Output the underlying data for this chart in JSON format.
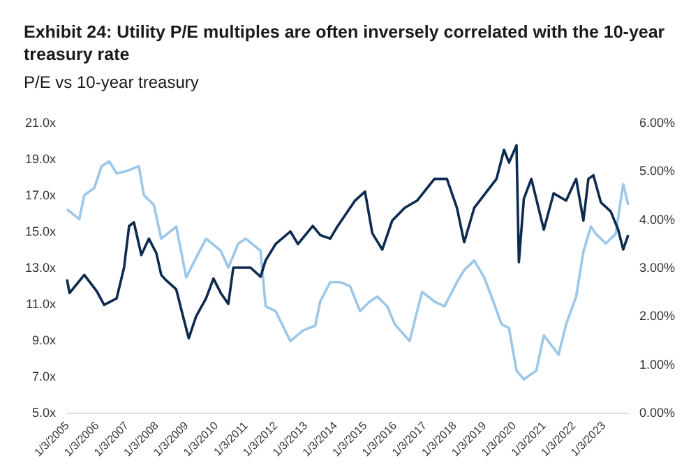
{
  "chart_data": {
    "type": "line",
    "title": "Exhibit 24: Utility P/E multiples are often inversely correlated with the 10-year treasury rate",
    "subtitle": "P/E vs 10-year treasury",
    "xlim": [
      "2005-01",
      "2023-11"
    ],
    "xticks": [
      {
        "value": "2005-01-03",
        "label": "1/3/2005"
      },
      {
        "value": "2006-01-03",
        "label": "1/3/2006"
      },
      {
        "value": "2007-01-03",
        "label": "1/3/2007"
      },
      {
        "value": "2008-01-03",
        "label": "1/3/2008"
      },
      {
        "value": "2009-01-03",
        "label": "1/3/2009"
      },
      {
        "value": "2010-01-03",
        "label": "1/3/2010"
      },
      {
        "value": "2011-01-03",
        "label": "1/3/2011"
      },
      {
        "value": "2012-01-03",
        "label": "1/3/2012"
      },
      {
        "value": "2013-01-03",
        "label": "1/3/2013"
      },
      {
        "value": "2014-01-03",
        "label": "1/3/2014"
      },
      {
        "value": "2015-01-03",
        "label": "1/3/2015"
      },
      {
        "value": "2016-01-03",
        "label": "1/3/2016"
      },
      {
        "value": "2017-01-03",
        "label": "1/3/2017"
      },
      {
        "value": "2018-01-03",
        "label": "1/3/2018"
      },
      {
        "value": "2019-01-03",
        "label": "1/3/2019"
      },
      {
        "value": "2020-01-03",
        "label": "1/3/2020"
      },
      {
        "value": "2021-01-03",
        "label": "1/3/2021"
      },
      {
        "value": "2022-01-03",
        "label": "1/3/2022"
      },
      {
        "value": "2023-01-03",
        "label": "1/3/2023"
      }
    ],
    "ylim": [
      5,
      21
    ],
    "yticks": [
      {
        "value": 5,
        "label": "5.0x"
      },
      {
        "value": 7,
        "label": "7.0x"
      },
      {
        "value": 9,
        "label": "9.0x"
      },
      {
        "value": 11,
        "label": "11.0x"
      },
      {
        "value": 13,
        "label": "13.0x"
      },
      {
        "value": 15,
        "label": "15.0x"
      },
      {
        "value": 17,
        "label": "17.0x"
      },
      {
        "value": 19,
        "label": "19.0x"
      },
      {
        "value": 21,
        "label": "21.0x"
      }
    ],
    "y2lim": [
      0,
      6
    ],
    "y2ticks": [
      {
        "value": 0,
        "label": "0.00%"
      },
      {
        "value": 1,
        "label": "1.00%"
      },
      {
        "value": 2,
        "label": "2.00%"
      },
      {
        "value": 3,
        "label": "3.00%"
      },
      {
        "value": 4,
        "label": "4.00%"
      },
      {
        "value": 5,
        "label": "5.00%"
      },
      {
        "value": 6,
        "label": "6.00%"
      }
    ],
    "grid": false,
    "marker": "none",
    "line_style": "solid",
    "series": [
      {
        "color": "#9cc7e8",
        "axis": "y2",
        "x": [
          "2005-01",
          "2005-06",
          "2005-08",
          "2005-12",
          "2006-03",
          "2006-06",
          "2006-09",
          "2007-01",
          "2007-06",
          "2007-08",
          "2007-12",
          "2008-03",
          "2008-09",
          "2009-01",
          "2009-04",
          "2009-09",
          "2010-03",
          "2010-06",
          "2010-10",
          "2011-01",
          "2011-07",
          "2011-09",
          "2012-01",
          "2012-07",
          "2012-12",
          "2013-05",
          "2013-07",
          "2013-11",
          "2014-03",
          "2014-07",
          "2014-11",
          "2015-03",
          "2015-06",
          "2015-10",
          "2016-01",
          "2016-07",
          "2016-10",
          "2016-12",
          "2017-05",
          "2017-09",
          "2018-02",
          "2018-05",
          "2018-09",
          "2019-01",
          "2019-04",
          "2019-08",
          "2019-11",
          "2020-02",
          "2020-05",
          "2020-10",
          "2021-01",
          "2021-07",
          "2021-10",
          "2022-02",
          "2022-05",
          "2022-08",
          "2022-10",
          "2023-02",
          "2023-06",
          "2023-09",
          "2023-11"
        ],
        "values": [
          4.21,
          4.0,
          4.5,
          4.65,
          5.1,
          5.2,
          4.95,
          5.0,
          5.1,
          4.5,
          4.3,
          3.6,
          3.85,
          2.8,
          3.1,
          3.6,
          3.35,
          3.0,
          3.5,
          3.6,
          3.35,
          2.2,
          2.1,
          1.48,
          1.7,
          1.8,
          2.3,
          2.7,
          2.7,
          2.62,
          2.1,
          2.3,
          2.4,
          2.2,
          1.83,
          1.48,
          2.1,
          2.5,
          2.3,
          2.2,
          2.7,
          2.95,
          3.15,
          2.8,
          2.4,
          1.83,
          1.75,
          0.87,
          0.69,
          0.87,
          1.6,
          1.2,
          1.83,
          2.4,
          3.33,
          3.85,
          3.7,
          3.5,
          3.7,
          4.73,
          4.3
        ]
      },
      {
        "color": "#0d2a4f",
        "x": [
          "2005-01",
          "2005-02",
          "2005-08",
          "2006-01",
          "2006-04",
          "2006-09",
          "2006-12",
          "2007-02",
          "2007-04",
          "2007-07",
          "2007-10",
          "2008-01",
          "2008-03",
          "2008-05",
          "2008-09",
          "2008-11",
          "2009-02",
          "2009-05",
          "2009-09",
          "2009-12",
          "2010-03",
          "2010-06",
          "2010-08",
          "2010-11",
          "2011-03",
          "2011-07",
          "2011-09",
          "2012-01",
          "2012-07",
          "2012-10",
          "2013-04",
          "2013-07",
          "2013-11",
          "2014-02",
          "2014-09",
          "2015-01",
          "2015-04",
          "2015-08",
          "2015-12",
          "2016-05",
          "2016-10",
          "2017-05",
          "2017-10",
          "2018-02",
          "2018-05",
          "2018-09",
          "2019-02",
          "2019-06",
          "2019-09",
          "2019-11",
          "2020-02",
          "2020-03",
          "2020-05",
          "2020-08",
          "2021-01",
          "2021-05",
          "2021-10",
          "2022-02",
          "2022-05",
          "2022-07",
          "2022-09",
          "2022-12",
          "2023-04",
          "2023-07",
          "2023-09",
          "2023-11"
        ],
        "values": [
          12.35,
          11.6,
          12.6,
          11.7,
          10.95,
          11.3,
          13.0,
          15.3,
          15.5,
          13.7,
          14.6,
          13.8,
          12.6,
          12.3,
          11.8,
          10.7,
          9.1,
          10.3,
          11.3,
          12.4,
          11.6,
          11.0,
          13.0,
          13.0,
          13.0,
          12.5,
          13.4,
          14.3,
          15.0,
          14.3,
          15.3,
          14.8,
          14.6,
          15.3,
          16.7,
          17.2,
          14.9,
          14.0,
          15.6,
          16.3,
          16.7,
          17.9,
          17.9,
          16.3,
          14.4,
          16.3,
          17.2,
          17.9,
          19.5,
          18.8,
          19.75,
          13.3,
          16.8,
          17.9,
          15.1,
          17.1,
          16.7,
          17.9,
          15.6,
          17.9,
          18.1,
          16.6,
          16.1,
          15.1,
          14.0,
          14.8
        ]
      }
    ]
  }
}
